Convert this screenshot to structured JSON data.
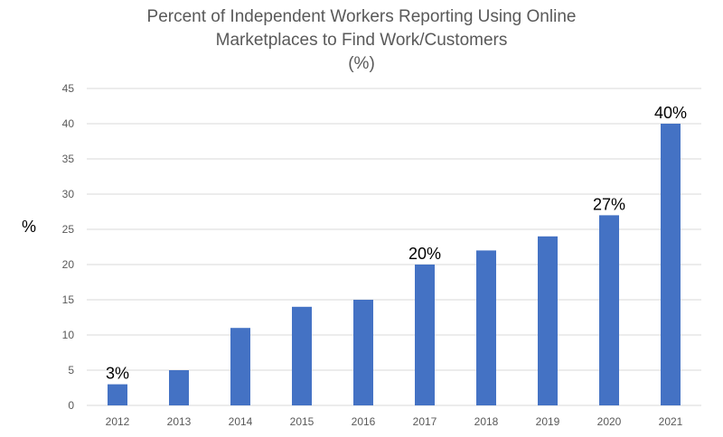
{
  "chart_data": {
    "type": "bar",
    "title_lines": [
      "Percent of Independent Workers Reporting Using Online",
      "Marketplaces to Find Work/Customers",
      "(%)"
    ],
    "ylabel": "%",
    "xlabel": "",
    "categories": [
      "2012",
      "2013",
      "2014",
      "2015",
      "2016",
      "2017",
      "2018",
      "2019",
      "2020",
      "2021"
    ],
    "values": [
      3,
      5,
      11,
      14,
      15,
      20,
      22,
      24,
      27,
      40
    ],
    "data_labels": [
      "3%",
      "",
      "",
      "",
      "",
      "20%",
      "",
      "",
      "27%",
      "40%"
    ],
    "ylim": [
      0,
      45
    ],
    "yticks": [
      0,
      5,
      10,
      15,
      20,
      25,
      30,
      35,
      40,
      45
    ],
    "grid": true,
    "legend": "none",
    "colors": {
      "bar": "#4472C4",
      "grid": "#D9D9D9",
      "tick_text": "#595959"
    }
  }
}
